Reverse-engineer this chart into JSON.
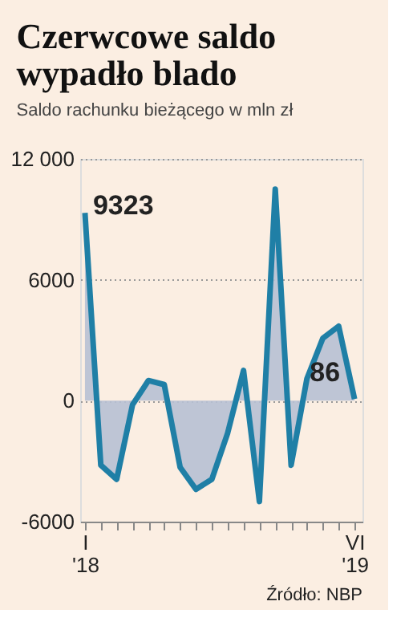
{
  "chart_data": {
    "type": "area",
    "title": "Czerwcowe saldo\nwypadło blado",
    "subtitle": "Saldo rachunku bieżącego w mln zł",
    "categories": [
      "I '18",
      null,
      null,
      null,
      null,
      null,
      null,
      null,
      null,
      null,
      null,
      null,
      null,
      null,
      null,
      null,
      null,
      "VI '19"
    ],
    "series": [
      {
        "color": "#1f7fa6",
        "values": [
          9323,
          -3200,
          -3900,
          -200,
          1000,
          800,
          -3300,
          -4400,
          -3900,
          -1600,
          1500,
          -5000,
          10500,
          -3200,
          1100,
          3100,
          3700,
          86
        ]
      }
    ],
    "value_labels": [
      "9323",
      null,
      null,
      null,
      null,
      null,
      null,
      null,
      null,
      null,
      null,
      null,
      null,
      null,
      null,
      null,
      null,
      "86"
    ],
    "ylim": [
      -6000,
      12000
    ],
    "yticks": [
      {
        "value": 12000,
        "label": "12 000"
      },
      6000,
      0,
      -6000
    ],
    "grid": "y",
    "annotations": [
      "Źródło: NBP"
    ]
  }
}
